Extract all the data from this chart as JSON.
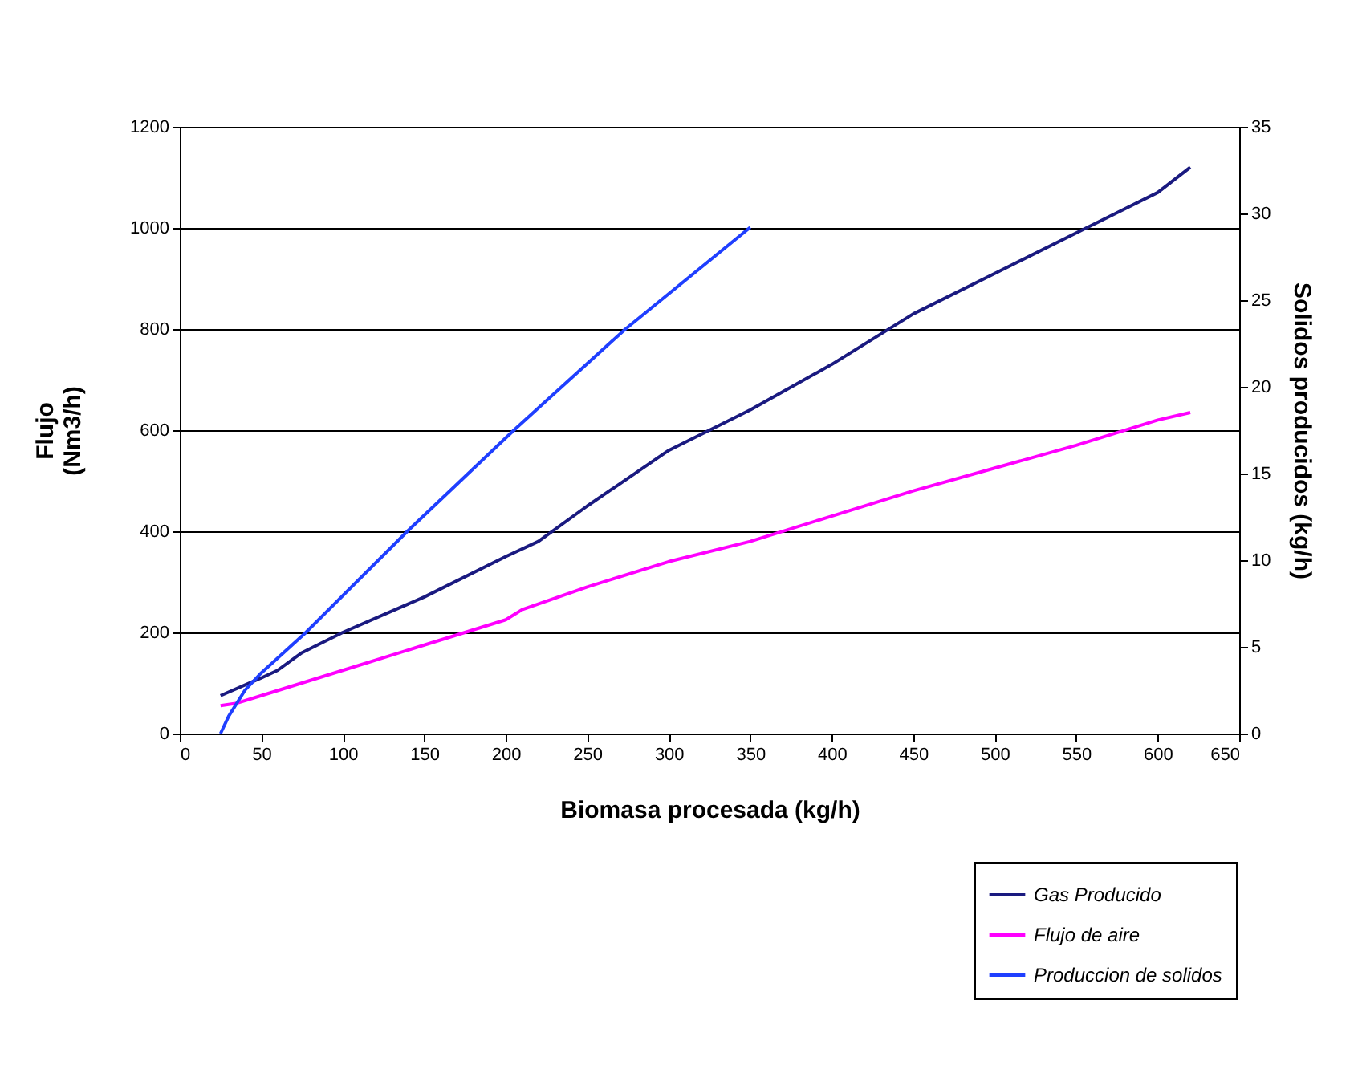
{
  "chart_data": {
    "type": "line",
    "xlabel": "Biomasa procesada (kg/h)",
    "ylabel": "Flujo\n(Nm3/h)",
    "y2label": "Solidos producidos (kg/h)",
    "xlim": [
      0,
      650
    ],
    "xticks": [
      0,
      50,
      100,
      150,
      200,
      250,
      300,
      350,
      400,
      450,
      500,
      550,
      600,
      650
    ],
    "ylim": [
      0,
      1200
    ],
    "yticks": [
      0,
      200,
      400,
      600,
      800,
      1000,
      1200
    ],
    "y2lim": [
      0,
      35
    ],
    "y2ticks": [
      0,
      5,
      10,
      15,
      20,
      25,
      30,
      35
    ],
    "grid": "y",
    "legend": "bottom right",
    "line_style": "solid",
    "series": [
      {
        "name": "Gas Producido",
        "color": "#1a1a80",
        "x": [
          25,
          50,
          60,
          75,
          100,
          150,
          200,
          220,
          250,
          300,
          350,
          400,
          450,
          500,
          550,
          600,
          620
        ],
        "values": [
          75,
          110,
          125,
          160,
          200,
          270,
          350,
          380,
          450,
          560,
          640,
          730,
          830,
          910,
          990,
          1070,
          1120
        ]
      },
      {
        "name": "Flujo de aire",
        "color": "#ff00ff",
        "x": [
          25,
          35,
          50,
          75,
          100,
          150,
          200,
          210,
          250,
          300,
          350,
          400,
          450,
          500,
          550,
          600,
          620
        ],
        "values": [
          55,
          60,
          75,
          100,
          125,
          175,
          225,
          245,
          290,
          340,
          380,
          430,
          480,
          525,
          570,
          620,
          635
        ]
      },
      {
        "name": "Produccion de solidos",
        "color": "#1f3fff",
        "axis": "y2",
        "x": [
          25,
          30,
          40,
          50,
          77,
          140,
          205,
          273,
          350
        ],
        "values": [
          0,
          1.0,
          2.5,
          3.5,
          5.8,
          11.7,
          17.5,
          23.3,
          29.2
        ]
      }
    ]
  }
}
